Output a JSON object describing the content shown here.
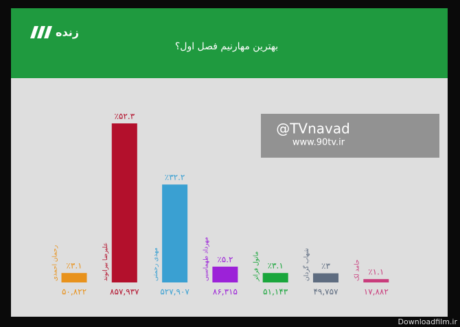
{
  "chart_data": {
    "type": "bar",
    "channel": "زنده",
    "title": "بهترین مهارنیم فصل اول؟",
    "categories": [
      "رحمان احمدی",
      "علیرضا بیرانوند",
      "مهدی رحمتی",
      "مهرداد طهماسبی",
      "ماتول فراتر",
      "شهاب گردان",
      "حامد لک"
    ],
    "values": [
      3.1,
      52.3,
      32.2,
      5.2,
      3.1,
      3,
      1.1
    ],
    "value_labels": [
      "٪۳.۱",
      "٪۵۲.۳",
      "٪۳۲.۲",
      "٪۵.۲",
      "٪۳.۱",
      "٪۳",
      "٪۱.۱"
    ],
    "vote_labels": [
      "۵۰,۸۲۲",
      "۸۵۷,۹۳۷",
      "۵۲۷,۹۰۷",
      "۸۶,۳۱۵",
      "۵۱,۱۴۳",
      "۴۹,۷۵۷",
      "۱۷,۸۸۲"
    ],
    "colors": [
      "#e8921c",
      "#b3102c",
      "#3aa0d2",
      "#9c22d8",
      "#1aa63c",
      "#5e6c80",
      "#c93c7c"
    ],
    "watermark": [
      "@TVnavad",
      "www.90tv.ir"
    ],
    "footer": "Downloadfilm.ir"
  }
}
